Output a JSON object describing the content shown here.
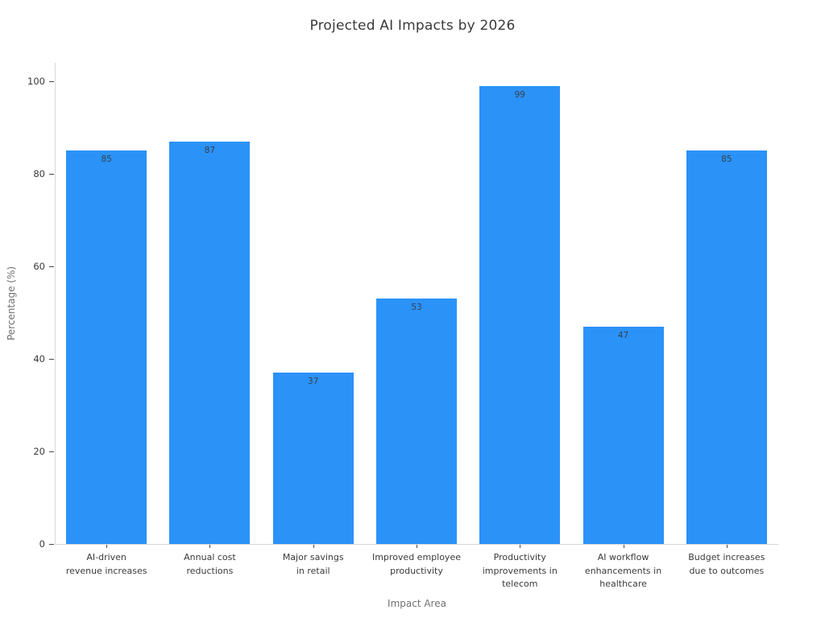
{
  "chart_data": {
    "type": "bar",
    "title": "Projected AI Impacts by 2026",
    "xlabel": "Impact Area",
    "ylabel": "Percentage (%)",
    "categories": [
      "AI-driven\nrevenue increases",
      "Annual cost\nreductions",
      "Major savings\nin retail",
      "Improved employee\nproductivity",
      "Productivity\nimprovements in\ntelecom",
      "AI workflow\nenhancements in\nhealthcare",
      "Budget increases\ndue to outcomes"
    ],
    "values": [
      85,
      87,
      37,
      53,
      99,
      47,
      85
    ],
    "value_labels": [
      "85",
      "87",
      "37",
      "53",
      "99",
      "47",
      "85"
    ],
    "yticks": [
      0,
      20,
      40,
      60,
      80,
      100
    ],
    "ylim": [
      0,
      104
    ],
    "grid": false,
    "legend_position": "none",
    "colors": {
      "bar": "#2b92f8",
      "title_text": "#3a3a3a",
      "tick_text": "#3a3a3a",
      "axis_title_text": "#707070",
      "axis_line": "#d9d9d9",
      "tick_mark": "#4a4a4a",
      "value_label_text": "#37414b",
      "background": "#ffffff"
    }
  }
}
